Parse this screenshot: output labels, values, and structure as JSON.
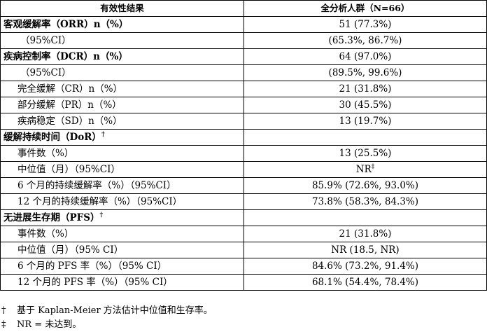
{
  "header": {
    "col1": "有效性结果",
    "col2": "全分析人群（N=66）"
  },
  "rows": [
    {
      "label": "客观缓解率（ORR）n（%）",
      "value": "51 (77.3%)"
    },
    {
      "label": "（95%CI）",
      "value": "(65.3%, 86.7%)"
    },
    {
      "label": "疾病控制率（DCR）n（%）",
      "value": "64 (97.0%)"
    },
    {
      "label": "（95%CI）",
      "value": "(89.5%, 99.6%)"
    },
    {
      "label": "完全缓解（CR）n（%）",
      "value": "21 (31.8%)"
    },
    {
      "label": "部分缓解（PR）n（%）",
      "value": "30 (45.5%)"
    },
    {
      "label": "疾病稳定（SD）n（%）",
      "value": "13 (19.7%)"
    },
    {
      "label": "缓解持续时间（DoR）",
      "mark": "†",
      "value": ""
    },
    {
      "label": "事件数（%）",
      "value": "13 (25.5%)"
    },
    {
      "label": "中位值（月）（95%CI）",
      "value": "NR",
      "value_mark": "‡"
    },
    {
      "label": "6 个月的持续缓解率（%）（95%CI）",
      "value": "85.9% (72.6%, 93.0%)"
    },
    {
      "label": "12 个月的持续缓解率（%）（95%CI）",
      "value": "73.8% (58.3%, 84.3%)"
    },
    {
      "label": "无进展生存期（PFS）",
      "mark": "†",
      "value": ""
    },
    {
      "label": "事件数（%）",
      "value": "21 (31.8%)"
    },
    {
      "label": "中位值（月）（95% CI）",
      "value": "NR (18.5, NR)"
    },
    {
      "label": "6 个月的 PFS 率（%）（95% CI）",
      "value": "84.6% (73.2%, 91.4%)"
    },
    {
      "label": "12 个月的 PFS 率（%）（95% CI）",
      "value": "68.1% (54.4%, 78.4%)"
    }
  ],
  "footnotes": [
    {
      "symbol": "†",
      "text": "基于 Kaplan-Meier 方法估计中位值和生存率。"
    },
    {
      "symbol": "‡",
      "text": "NR = 未达到。"
    }
  ]
}
